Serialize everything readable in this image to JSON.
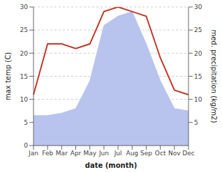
{
  "chart_data": {
    "type": "line",
    "categories": [
      "Jan",
      "Feb",
      "Mar",
      "Apr",
      "May",
      "Jun",
      "Jul",
      "Aug",
      "Sep",
      "Oct",
      "Nov",
      "Dec"
    ],
    "series": [
      {
        "type": "area",
        "axis": "y2",
        "color": "#b8c4ee",
        "values": [
          6.5,
          6.5,
          7,
          8,
          14,
          26,
          28,
          29,
          22,
          14,
          8,
          7.5
        ]
      },
      {
        "type": "line",
        "color": "#c0392b",
        "values": [
          11,
          22,
          22,
          21,
          22,
          29,
          30,
          29,
          28,
          19,
          12,
          11
        ]
      }
    ],
    "xlabel": "date (month)",
    "ylabel": "max temp (C)",
    "y2label": "med. precipitation (kg/m2)",
    "ylim": [
      0,
      30
    ],
    "yticks": [
      0,
      5,
      10,
      15,
      20,
      25,
      30
    ],
    "y2lim": [
      0,
      30
    ],
    "y2ticks": [
      5,
      10,
      15,
      20,
      25,
      30
    ],
    "grid": true
  }
}
